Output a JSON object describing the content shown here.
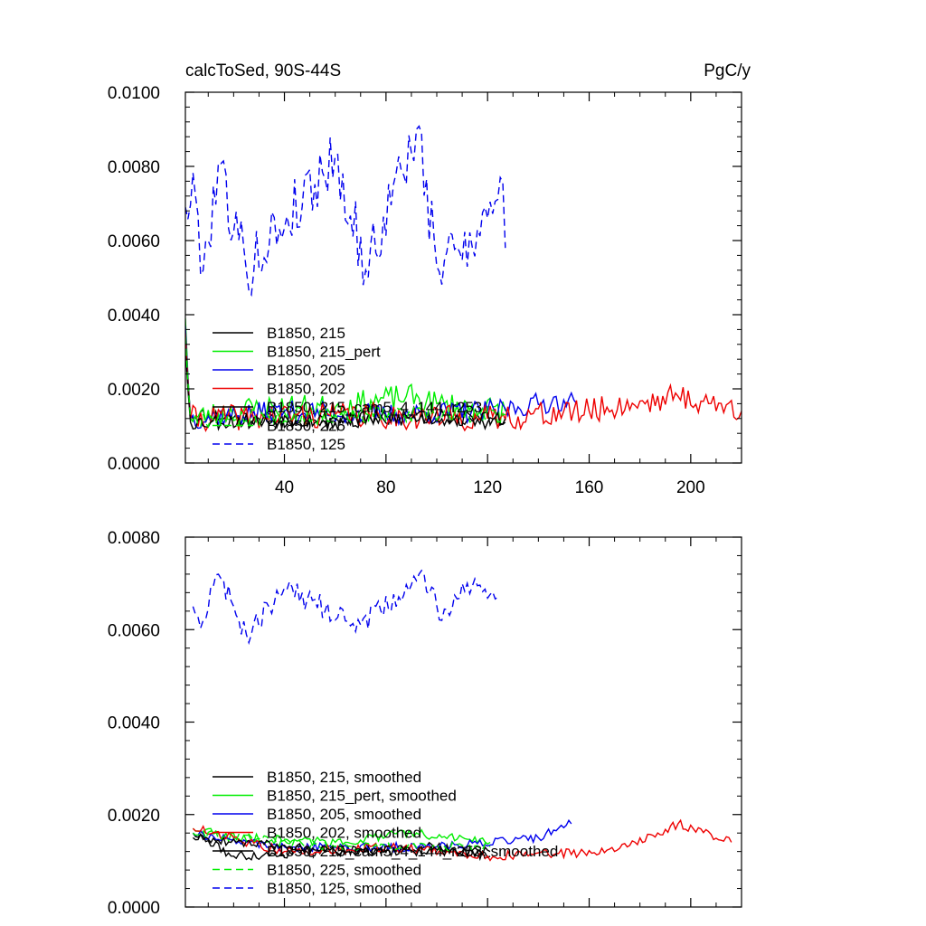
{
  "chart_data": [
    {
      "type": "line",
      "title": "calcToSed, 90S-44S",
      "units": "PgC/y",
      "xlim": [
        1,
        220
      ],
      "ylim": [
        0,
        0.01
      ],
      "x_ticks": [
        40,
        80,
        120,
        160,
        200
      ],
      "y_ticks": [
        "0.0000",
        "0.0020",
        "0.0040",
        "0.0060",
        "0.0080",
        "0.0100"
      ],
      "legend_position": "bottom-left",
      "series": [
        {
          "name": "B1850, 215",
          "color": "#000000",
          "dash": "solid",
          "length": 127,
          "start": 0.0033,
          "mean": 0.00115,
          "amp": 0.00022,
          "seed": 11,
          "anchors": [
            [
              1,
              0.0033
            ],
            [
              3,
              0.0013
            ],
            [
              30,
              0.0012
            ],
            [
              60,
              0.0011
            ],
            [
              90,
              0.0013
            ],
            [
              120,
              0.0011
            ],
            [
              127,
              0.0011
            ]
          ]
        },
        {
          "name": "B1850, 215_pert",
          "color": "#00ee00",
          "dash": "solid",
          "length": 127,
          "start": 0.0039,
          "mean": 0.00145,
          "amp": 0.00035,
          "seed": 23,
          "anchors": [
            [
              1,
              0.0039
            ],
            [
              3,
              0.0012
            ],
            [
              30,
              0.0015
            ],
            [
              60,
              0.0015
            ],
            [
              88,
              0.0018
            ],
            [
              100,
              0.0016
            ],
            [
              127,
              0.0014
            ]
          ]
        },
        {
          "name": "B1850, 205",
          "color": "#0000ee",
          "dash": "solid",
          "length": 155,
          "start": 0.0037,
          "mean": 0.00135,
          "amp": 0.0003,
          "seed": 37,
          "anchors": [
            [
              1,
              0.0037
            ],
            [
              3,
              0.0012
            ],
            [
              40,
              0.0014
            ],
            [
              80,
              0.0013
            ],
            [
              120,
              0.0014
            ],
            [
              150,
              0.0017
            ],
            [
              155,
              0.0016
            ]
          ]
        },
        {
          "name": "B1850, 202",
          "color": "#ee0000",
          "dash": "solid",
          "length": 220,
          "start": 0.0035,
          "mean": 0.00135,
          "amp": 0.00035,
          "seed": 41,
          "anchors": [
            [
              1,
              0.0035
            ],
            [
              3,
              0.0012
            ],
            [
              60,
              0.0013
            ],
            [
              120,
              0.0012
            ],
            [
              160,
              0.0014
            ],
            [
              195,
              0.0018
            ],
            [
              220,
              0.0014
            ]
          ]
        },
        {
          "name": "B1850, 215_cam5_4_144_r253",
          "color": "#000000",
          "dash": "solid",
          "length": 127,
          "start": 0.0031,
          "mean": 0.00125,
          "amp": 0.00022,
          "seed": 53,
          "anchors": [
            [
              1,
              0.0031
            ],
            [
              3,
              0.0011
            ],
            [
              60,
              0.0012
            ],
            [
              127,
              0.0012
            ]
          ]
        },
        {
          "name": "B1850, 225",
          "color": "#00ee00",
          "dash": "dash",
          "length": 127,
          "start": 0.0034,
          "mean": 0.0013,
          "amp": 0.00025,
          "seed": 67,
          "anchors": [
            [
              1,
              0.0034
            ],
            [
              3,
              0.0012
            ],
            [
              60,
              0.0013
            ],
            [
              127,
              0.0013
            ]
          ]
        },
        {
          "name": "B1850, 125",
          "color": "#0000ee",
          "dash": "dash",
          "length": 127,
          "start": 0.0069,
          "mean": 0.0066,
          "amp": 0.00085,
          "seed": 79,
          "anchors": [
            [
              1,
              0.0069
            ],
            [
              5,
              0.0072
            ],
            [
              8,
              0.0052
            ],
            [
              14,
              0.0081
            ],
            [
              25,
              0.0052
            ],
            [
              60,
              0.0083
            ],
            [
              72,
              0.0052
            ],
            [
              92,
              0.009
            ],
            [
              100,
              0.0053
            ],
            [
              120,
              0.0066
            ],
            [
              125,
              0.0077
            ],
            [
              127,
              0.0058
            ]
          ]
        }
      ]
    },
    {
      "type": "line",
      "xlim": [
        1,
        220
      ],
      "ylim": [
        0,
        0.008
      ],
      "y_ticks": [
        "0.0000",
        "0.0020",
        "0.0040",
        "0.0060",
        "0.0080"
      ],
      "legend_position": "bottom-left",
      "series": [
        {
          "name": "B1850, 215, smoothed",
          "color": "#000000",
          "dash": "solid",
          "length": 121,
          "start": 0.0016,
          "mean": 0.00115,
          "amp": 0.0001,
          "seed": 111,
          "anchors": [
            [
              4,
              0.0016
            ],
            [
              20,
              0.0011
            ],
            [
              60,
              0.0012
            ],
            [
              100,
              0.0013
            ],
            [
              121,
              0.0011
            ]
          ]
        },
        {
          "name": "B1850, 215_pert, smoothed",
          "color": "#00ee00",
          "dash": "solid",
          "length": 121,
          "start": 0.0017,
          "mean": 0.0014,
          "amp": 0.0001,
          "seed": 122,
          "anchors": [
            [
              4,
              0.0017
            ],
            [
              20,
              0.0015
            ],
            [
              60,
              0.0014
            ],
            [
              90,
              0.0016
            ],
            [
              121,
              0.0014
            ]
          ]
        },
        {
          "name": "B1850, 205, smoothed",
          "color": "#0000ee",
          "dash": "solid",
          "length": 153,
          "start": 0.0016,
          "mean": 0.0013,
          "amp": 0.0001,
          "seed": 133,
          "anchors": [
            [
              4,
              0.0016
            ],
            [
              40,
              0.0013
            ],
            [
              100,
              0.0013
            ],
            [
              140,
              0.0015
            ],
            [
              153,
              0.0018
            ]
          ]
        },
        {
          "name": "B1850, 202, smoothed",
          "color": "#ee0000",
          "dash": "solid",
          "length": 216,
          "start": 0.0017,
          "mean": 0.0013,
          "amp": 0.0001,
          "seed": 144,
          "anchors": [
            [
              4,
              0.0017
            ],
            [
              40,
              0.0012
            ],
            [
              80,
              0.0013
            ],
            [
              120,
              0.0011
            ],
            [
              170,
              0.0012
            ],
            [
              195,
              0.0018
            ],
            [
              216,
              0.0014
            ]
          ]
        },
        {
          "name": "B1850, 215_cam5_4_144_r253, smoothed",
          "color": "#000000",
          "dash": "solid",
          "length": 121,
          "start": 0.0015,
          "mean": 0.00125,
          "amp": 0.0001,
          "seed": 155,
          "anchors": [
            [
              4,
              0.0015
            ],
            [
              60,
              0.0012
            ],
            [
              121,
              0.0012
            ]
          ]
        },
        {
          "name": "B1850, 225, smoothed",
          "color": "#00ee00",
          "dash": "dash",
          "length": 121,
          "start": 0.0016,
          "mean": 0.0013,
          "amp": 0.0001,
          "seed": 166,
          "anchors": [
            [
              4,
              0.0016
            ],
            [
              60,
              0.0013
            ],
            [
              121,
              0.0013
            ]
          ]
        },
        {
          "name": "B1850, 125, smoothed",
          "color": "#0000ee",
          "dash": "dash",
          "length": 124,
          "start": 0.0065,
          "mean": 0.0067,
          "amp": 0.00025,
          "seed": 177,
          "anchors": [
            [
              4,
              0.0065
            ],
            [
              8,
              0.0062
            ],
            [
              14,
              0.0072
            ],
            [
              20,
              0.0065
            ],
            [
              25,
              0.0059
            ],
            [
              40,
              0.0069
            ],
            [
              70,
              0.0061
            ],
            [
              95,
              0.0072
            ],
            [
              102,
              0.0062
            ],
            [
              115,
              0.0071
            ],
            [
              124,
              0.0067
            ]
          ]
        }
      ]
    }
  ]
}
